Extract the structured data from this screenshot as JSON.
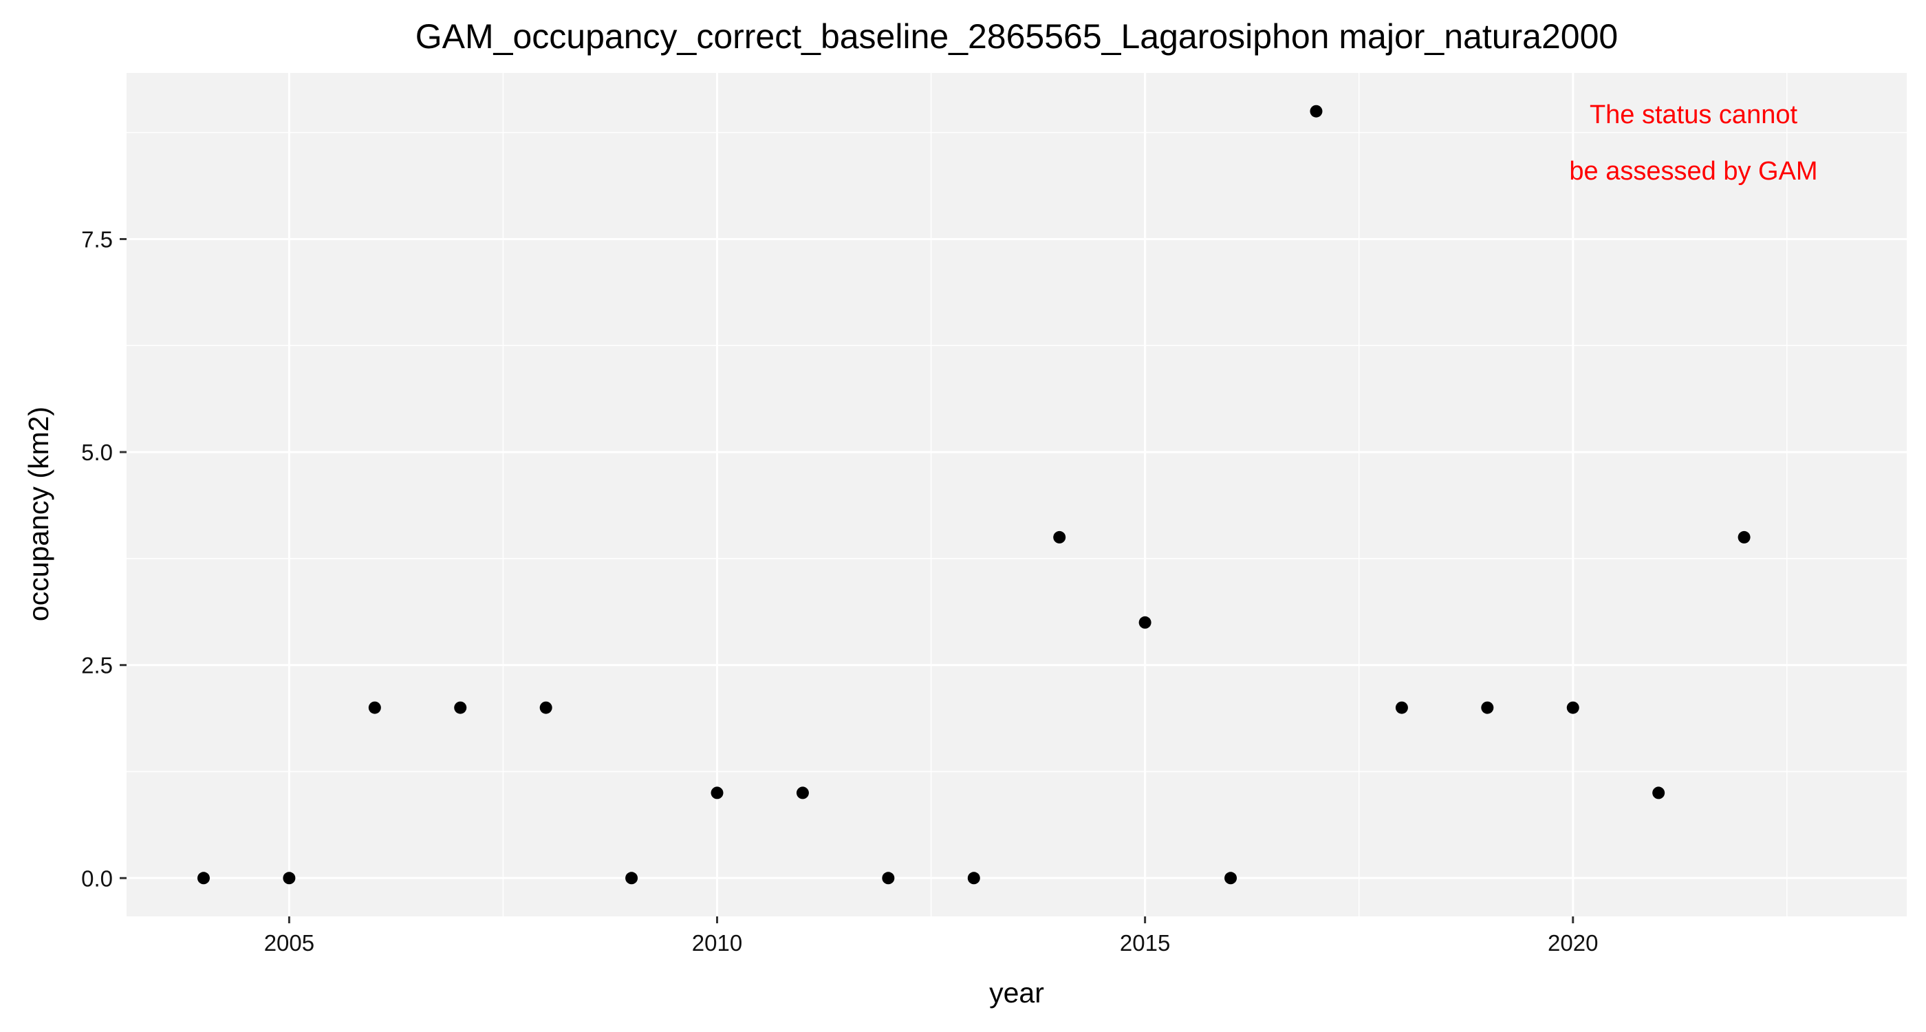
{
  "chart_data": {
    "type": "scatter",
    "title": "GAM_occupancy_correct_baseline_2865565_Lagarosiphon major_natura2000",
    "xlabel": "year",
    "ylabel": "occupancy (km2)",
    "xlim": [
      2003.1,
      2023.9
    ],
    "ylim": [
      -0.45,
      9.45
    ],
    "x_ticks": [
      2005,
      2010,
      2015,
      2020
    ],
    "x_tick_labels": [
      "2005",
      "2010",
      "2015",
      "2020"
    ],
    "y_ticks": [
      0,
      2.5,
      5,
      7.5
    ],
    "y_tick_labels": [
      "0.0",
      "2.5",
      "5.0",
      "7.5"
    ],
    "grid": true,
    "series": [
      {
        "x": [
          2004,
          2005,
          2006,
          2007,
          2008,
          2009,
          2010,
          2011,
          2012,
          2013,
          2014,
          2015,
          2016,
          2017,
          2018,
          2019,
          2020,
          2021,
          2022
        ],
        "y": [
          0,
          0,
          2,
          2,
          2,
          0,
          1,
          1,
          0,
          0,
          4,
          3,
          0,
          9,
          2,
          2,
          2,
          1,
          4
        ],
        "color": "#000000"
      }
    ],
    "annotation": {
      "lines": [
        "The status cannot",
        "be assessed by GAM"
      ],
      "color": "#ff0000",
      "placement": "top-right"
    }
  }
}
